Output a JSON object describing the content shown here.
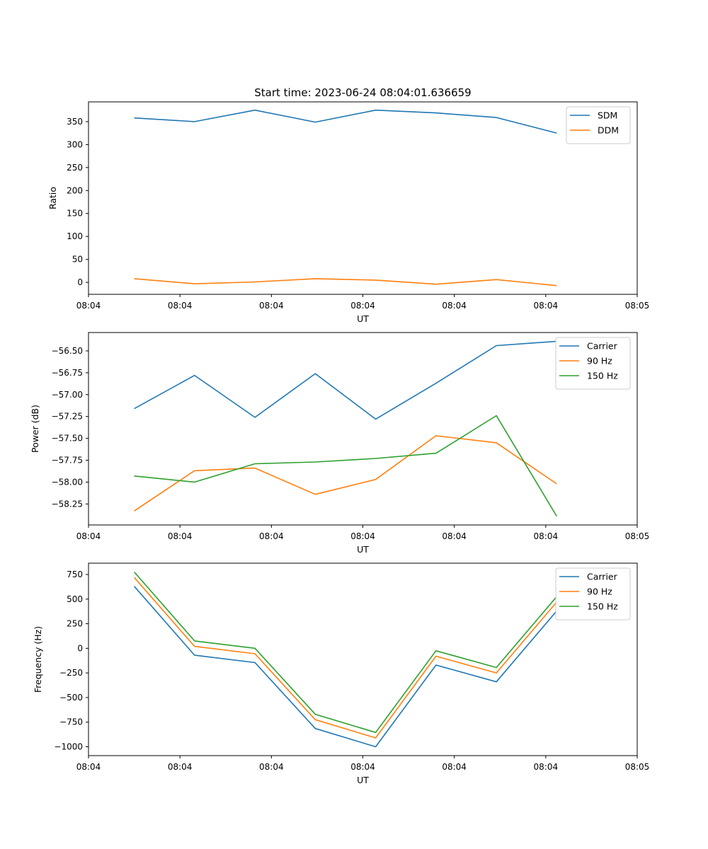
{
  "chart_data": [
    {
      "type": "line",
      "title": "Start time: 2023-06-24 08:04:01.636659",
      "xlabel": "UT",
      "ylabel": "Ratio",
      "legend": "top-right",
      "grid": false,
      "xlim": [
        0,
        9
      ],
      "x_ticks": [
        {
          "x": 0,
          "label": "08:04"
        },
        {
          "x": 1.5,
          "label": "08:04"
        },
        {
          "x": 3,
          "label": "08:04"
        },
        {
          "x": 4.5,
          "label": "08:04"
        },
        {
          "x": 6,
          "label": "08:04"
        },
        {
          "x": 7.5,
          "label": "08:04"
        },
        {
          "x": 9,
          "label": "08:05"
        }
      ],
      "ylim": [
        -26,
        393
      ],
      "y_ticks": [
        0,
        50,
        100,
        150,
        200,
        250,
        300,
        350
      ],
      "x": [
        0.75,
        1.74,
        2.73,
        3.72,
        4.71,
        5.7,
        6.69,
        7.68
      ],
      "series": [
        {
          "name": "SDM",
          "color": "#1f77b4",
          "values": [
            358,
            350,
            375,
            349,
            375,
            369,
            359,
            325
          ]
        },
        {
          "name": "DDM",
          "color": "#ff7f0e",
          "values": [
            8,
            -3,
            1,
            8,
            5,
            -4,
            6,
            -7
          ]
        }
      ]
    },
    {
      "type": "line",
      "title": "",
      "xlabel": "UT",
      "ylabel": "Power (dB)",
      "legend": "top-right",
      "grid": false,
      "xlim": [
        0,
        9
      ],
      "x_ticks": [
        {
          "x": 0,
          "label": "08:04"
        },
        {
          "x": 1.5,
          "label": "08:04"
        },
        {
          "x": 3,
          "label": "08:04"
        },
        {
          "x": 4.5,
          "label": "08:04"
        },
        {
          "x": 6,
          "label": "08:04"
        },
        {
          "x": 7.5,
          "label": "08:04"
        },
        {
          "x": 9,
          "label": "08:05"
        }
      ],
      "ylim": [
        -58.49,
        -56.29
      ],
      "y_ticks": [
        -58.25,
        -58.0,
        -57.75,
        -57.5,
        -57.25,
        -57.0,
        -56.75,
        -56.5
      ],
      "y_tick_labels": [
        "−58.25",
        "−58.00",
        "−57.75",
        "−57.50",
        "−57.25",
        "−57.00",
        "−56.75",
        "−56.50"
      ],
      "x": [
        0.75,
        1.74,
        2.73,
        3.72,
        4.71,
        5.7,
        6.69,
        7.68
      ],
      "series": [
        {
          "name": "Carrier",
          "color": "#1f77b4",
          "values": [
            -57.16,
            -56.78,
            -57.26,
            -56.76,
            -57.28,
            -56.87,
            -56.44,
            -56.39
          ]
        },
        {
          "name": "90 Hz",
          "color": "#ff7f0e",
          "values": [
            -58.33,
            -57.87,
            -57.84,
            -58.14,
            -57.97,
            -57.47,
            -57.55,
            -58.02
          ]
        },
        {
          "name": "150 Hz",
          "color": "#2ca02c",
          "values": [
            -57.93,
            -58.0,
            -57.79,
            -57.77,
            -57.73,
            -57.67,
            -57.24,
            -58.39
          ]
        }
      ]
    },
    {
      "type": "line",
      "title": "",
      "xlabel": "UT",
      "ylabel": "Frequency (Hz)",
      "legend": "top-right",
      "grid": false,
      "xlim": [
        0,
        9
      ],
      "x_ticks": [
        {
          "x": 0,
          "label": "08:04"
        },
        {
          "x": 1.5,
          "label": "08:04"
        },
        {
          "x": 3,
          "label": "08:04"
        },
        {
          "x": 4.5,
          "label": "08:04"
        },
        {
          "x": 6,
          "label": "08:04"
        },
        {
          "x": 7.5,
          "label": "08:04"
        },
        {
          "x": 9,
          "label": "08:05"
        }
      ],
      "ylim": [
        -1090,
        865
      ],
      "y_ticks": [
        -1000,
        -750,
        -500,
        -250,
        0,
        250,
        500,
        750
      ],
      "y_tick_labels": [
        "−1000",
        "−750",
        "−500",
        "−250",
        "0",
        "250",
        "500",
        "750"
      ],
      "x": [
        0.75,
        1.74,
        2.73,
        3.72,
        4.71,
        5.7,
        6.69,
        7.68
      ],
      "series": [
        {
          "name": "Carrier",
          "color": "#1f77b4",
          "values": [
            630,
            -70,
            -145,
            -815,
            -1000,
            -170,
            -340,
            380
          ]
        },
        {
          "name": "90 Hz",
          "color": "#ff7f0e",
          "values": [
            720,
            20,
            -55,
            -725,
            -910,
            -80,
            -250,
            470
          ]
        },
        {
          "name": "150 Hz",
          "color": "#2ca02c",
          "values": [
            775,
            75,
            0,
            -670,
            -855,
            -25,
            -195,
            525
          ]
        }
      ]
    }
  ]
}
